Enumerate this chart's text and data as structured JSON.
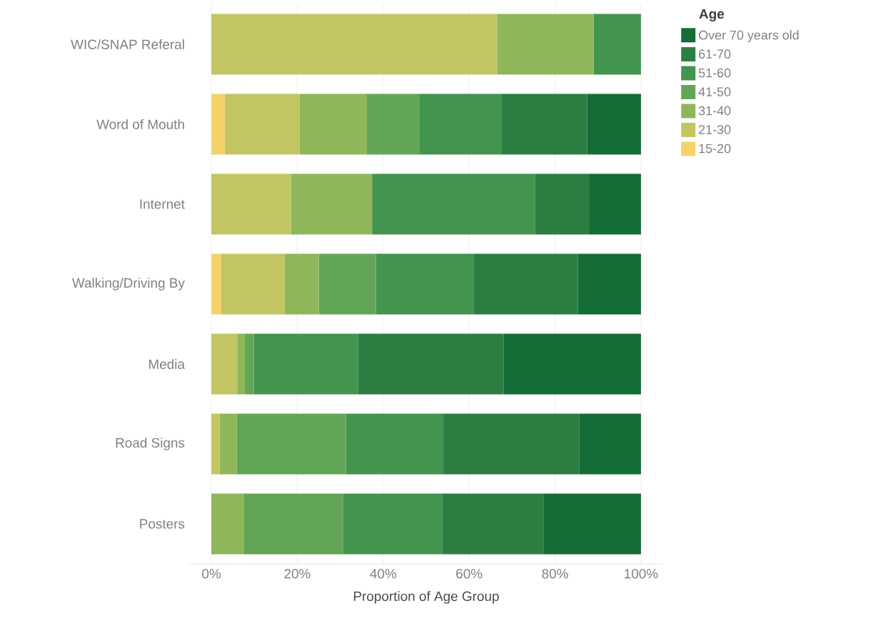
{
  "chart_data": {
    "type": "bar",
    "orientation": "horizontal",
    "stacked": true,
    "xlabel": "Proportion of Age Group",
    "legend_title": "Age",
    "legend": "top right",
    "grid": "x",
    "categories": [
      "WIC/SNAP Referal",
      "Word of Mouth",
      "Internet",
      "Walking/Driving By",
      "Media",
      "Road Signs",
      "Posters"
    ],
    "xlim": [
      0,
      100
    ],
    "xticks": [
      {
        "value": 0,
        "label": "0%"
      },
      {
        "value": 20,
        "label": "20%"
      },
      {
        "value": 40,
        "label": "40%"
      },
      {
        "value": 60,
        "label": "60%"
      },
      {
        "value": 80,
        "label": "80%"
      },
      {
        "value": 100,
        "label": "100%"
      }
    ],
    "series": [
      {
        "name": "15-20",
        "color": "#f5d169",
        "values": [
          null,
          3.1,
          null,
          2.3,
          null,
          null,
          null
        ]
      },
      {
        "name": "21-30",
        "color": "#c3c562",
        "values": [
          66.5,
          17.4,
          18.5,
          14.7,
          6.0,
          1.9,
          null
        ]
      },
      {
        "name": "31-40",
        "color": "#8fb75a",
        "values": [
          22.5,
          15.7,
          18.9,
          8.0,
          1.8,
          4.0,
          7.5
        ]
      },
      {
        "name": "41-50",
        "color": "#63a557",
        "values": [
          null,
          12.3,
          null,
          13.3,
          2.1,
          25.4,
          23.2
        ]
      },
      {
        "name": "51-60",
        "color": "#43944f",
        "values": [
          11.0,
          19.1,
          37.9,
          22.7,
          24.2,
          22.7,
          23.1
        ]
      },
      {
        "name": "61-70",
        "color": "#2c7e43",
        "values": [
          null,
          19.9,
          12.6,
          24.3,
          33.9,
          31.6,
          23.6
        ]
      },
      {
        "name": "Over 70 years old",
        "color": "#146c36",
        "values": [
          null,
          12.5,
          12.1,
          14.7,
          32.0,
          14.4,
          22.6
        ]
      }
    ]
  }
}
